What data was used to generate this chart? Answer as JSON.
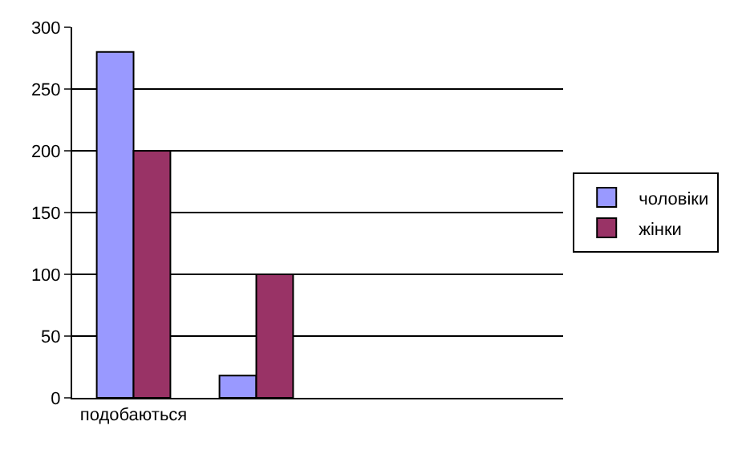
{
  "chart_data": {
    "type": "bar",
    "categories": [
      "подобаються",
      null,
      null,
      null
    ],
    "series": [
      {
        "name": "чоловіки",
        "color": "#9999ff",
        "values": [
          280,
          18,
          null,
          null
        ]
      },
      {
        "name": "жінки",
        "color": "#993366",
        "values": [
          200,
          100,
          null,
          null
        ]
      }
    ],
    "ylim": [
      0,
      300
    ],
    "yticks": [
      0,
      50,
      100,
      150,
      200,
      250,
      300
    ],
    "grid": "y",
    "legend": "right"
  }
}
